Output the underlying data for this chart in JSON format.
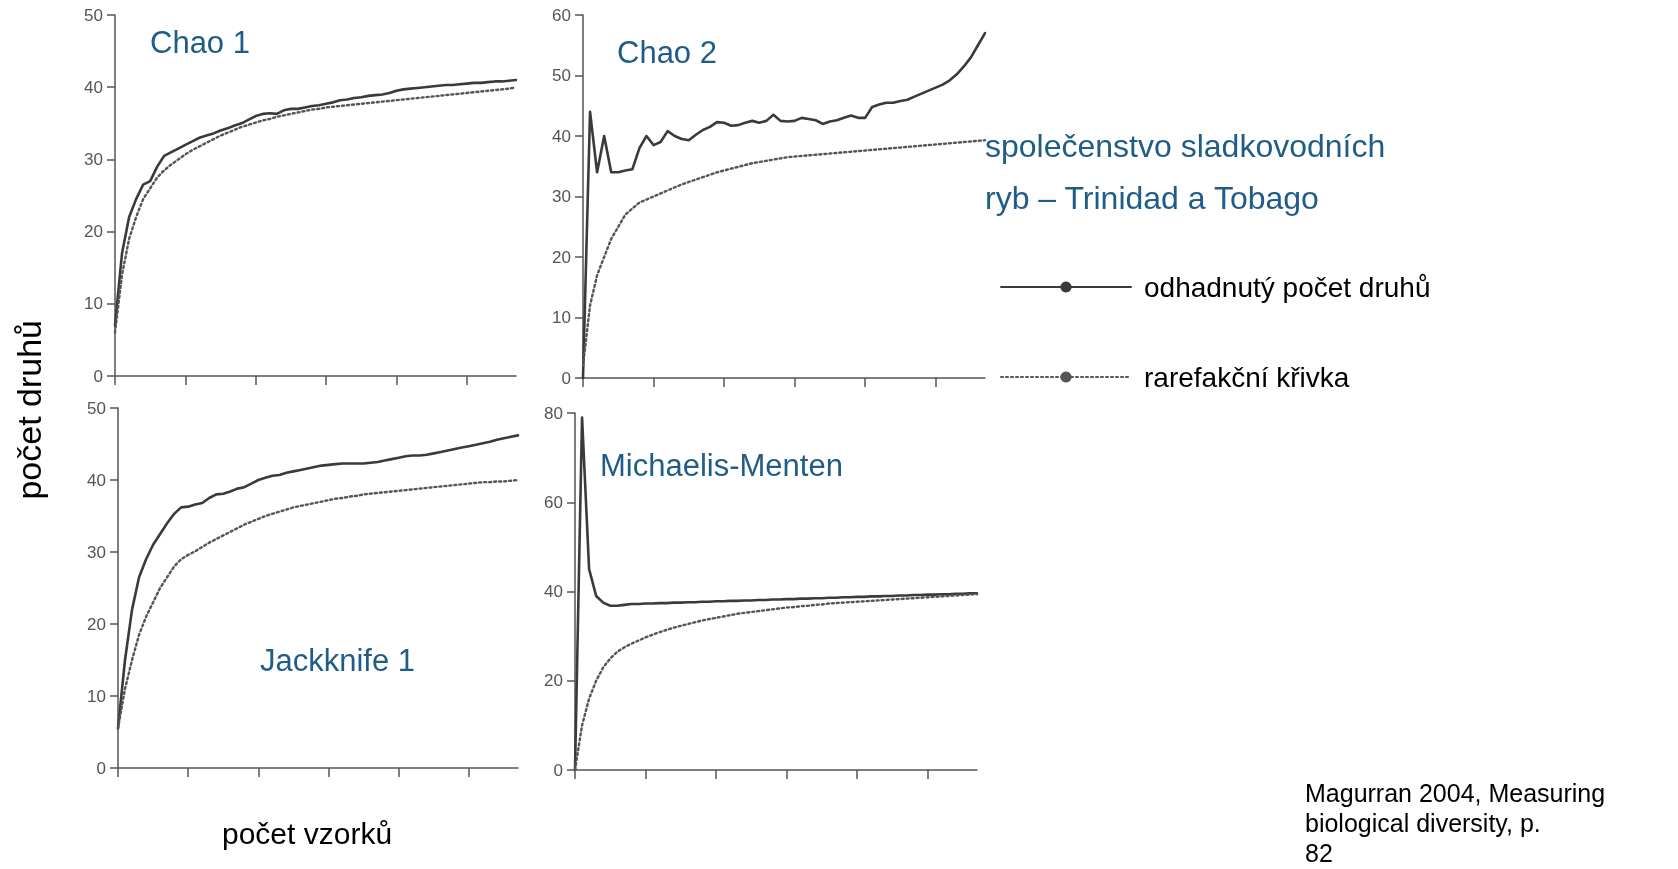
{
  "chart_data": [
    {
      "type": "line",
      "title": "Chao 1",
      "ylabel": "počet druhů",
      "categories": [
        null,
        null,
        null,
        null,
        null,
        null,
        null,
        null,
        null,
        null,
        null,
        null,
        null,
        null,
        null,
        null,
        null,
        null,
        null,
        null,
        null,
        null,
        null,
        null,
        null,
        null,
        null,
        null,
        null,
        null,
        null,
        null,
        null,
        null,
        null,
        null,
        null,
        null,
        null,
        null,
        null,
        null,
        null,
        null,
        null,
        null,
        null,
        null,
        null,
        null,
        null,
        null,
        null,
        null,
        null,
        null,
        null,
        null
      ],
      "ylim": [
        0,
        50
      ],
      "yticks": [
        0,
        10,
        20,
        30,
        40,
        50
      ],
      "tick_labels": "y",
      "marker": "none",
      "series": [
        {
          "color": "#3a3a3a",
          "line_style": "solid",
          "values": [
            7,
            17,
            22,
            24.5,
            26.5,
            27,
            29,
            30.5,
            31,
            31.5,
            32,
            32.5,
            33,
            33.3,
            33.6,
            34,
            34.3,
            34.7,
            35,
            35.5,
            36,
            36.3,
            36.4,
            36.3,
            36.8,
            37,
            37,
            37.2,
            37.4,
            37.5,
            37.7,
            37.9,
            38.2,
            38.3,
            38.5,
            38.6,
            38.8,
            38.9,
            39,
            39.2,
            39.5,
            39.7,
            39.8,
            39.9,
            40,
            40.1,
            40.2,
            40.3,
            40.3,
            40.4,
            40.5,
            40.6,
            40.6,
            40.7,
            40.8,
            40.8,
            40.9,
            41
          ]
        },
        {
          "color": "#555555",
          "line_style": "dotted",
          "values": [
            6,
            14,
            19,
            22,
            24.5,
            26,
            27.5,
            28.5,
            29.3,
            30,
            30.7,
            31.3,
            31.8,
            32.3,
            32.8,
            33.3,
            33.7,
            34.1,
            34.5,
            34.8,
            35.1,
            35.4,
            35.6,
            35.9,
            36.1,
            36.3,
            36.5,
            36.7,
            36.9,
            37,
            37.2,
            37.3,
            37.4,
            37.5,
            37.6,
            37.7,
            37.8,
            37.9,
            38,
            38.1,
            38.2,
            38.3,
            38.4,
            38.5,
            38.6,
            38.7,
            38.8,
            38.9,
            39,
            39.1,
            39.2,
            39.3,
            39.4,
            39.5,
            39.6,
            39.7,
            39.8,
            40
          ]
        }
      ]
    },
    {
      "type": "line",
      "title": "Chao 2",
      "legend_title": "společenstvo sladkovodních ryb – Trinidad a Tobago",
      "legend": "right",
      "categories": [
        null,
        null,
        null,
        null,
        null,
        null,
        null,
        null,
        null,
        null,
        null,
        null,
        null,
        null,
        null,
        null,
        null,
        null,
        null,
        null,
        null,
        null,
        null,
        null,
        null,
        null,
        null,
        null,
        null,
        null,
        null,
        null,
        null,
        null,
        null,
        null,
        null,
        null,
        null,
        null,
        null,
        null,
        null,
        null,
        null,
        null,
        null,
        null,
        null,
        null,
        null,
        null,
        null,
        null,
        null,
        null,
        null,
        null
      ],
      "ylim": [
        0,
        60
      ],
      "yticks": [
        0,
        10,
        20,
        30,
        40,
        50,
        60
      ],
      "tick_labels": "y",
      "marker": "none",
      "series": [
        {
          "name": "odhadnutý počet druhů",
          "color": "#3a3a3a",
          "line_style": "solid",
          "values": [
            0,
            44,
            34,
            40,
            34,
            34,
            34.3,
            34.5,
            38,
            40,
            38.5,
            39,
            40.8,
            40,
            39.5,
            39.3,
            40.2,
            41,
            41.5,
            42.3,
            42.2,
            41.7,
            41.8,
            42.2,
            42.5,
            42.2,
            42.5,
            43.5,
            42.5,
            42.4,
            42.5,
            43,
            42.8,
            42.6,
            42,
            42.4,
            42.6,
            43,
            43.4,
            43,
            43,
            44.8,
            45.2,
            45.5,
            45.5,
            45.8,
            46,
            46.5,
            47,
            47.5,
            48,
            48.5,
            49.2,
            50.2,
            51.5,
            53,
            55,
            57
          ]
        },
        {
          "name": "rarefakční křivka",
          "color": "#555555",
          "line_style": "dotted",
          "values": [
            2,
            12,
            17,
            20,
            23,
            25,
            27,
            28,
            29,
            29.5,
            30,
            30.5,
            31,
            31.5,
            32,
            32.4,
            32.8,
            33.2,
            33.6,
            34,
            34.3,
            34.6,
            34.9,
            35.2,
            35.5,
            35.7,
            35.9,
            36.1,
            36.3,
            36.5,
            36.6,
            36.7,
            36.8,
            36.9,
            37,
            37.1,
            37.2,
            37.3,
            37.4,
            37.5,
            37.6,
            37.7,
            37.8,
            37.9,
            38,
            38.1,
            38.2,
            38.3,
            38.4,
            38.5,
            38.6,
            38.7,
            38.8,
            38.9,
            39,
            39.1,
            39.2,
            39.3
          ]
        }
      ]
    },
    {
      "type": "line",
      "title": "Jackknife 1",
      "xlabel": "počet vzorků",
      "categories": [
        null,
        null,
        null,
        null,
        null,
        null,
        null,
        null,
        null,
        null,
        null,
        null,
        null,
        null,
        null,
        null,
        null,
        null,
        null,
        null,
        null,
        null,
        null,
        null,
        null,
        null,
        null,
        null,
        null,
        null,
        null,
        null,
        null,
        null,
        null,
        null,
        null,
        null,
        null,
        null,
        null,
        null,
        null,
        null,
        null,
        null,
        null,
        null,
        null,
        null,
        null,
        null,
        null,
        null,
        null,
        null,
        null,
        null
      ],
      "ylim": [
        0,
        50
      ],
      "yticks": [
        0,
        10,
        20,
        30,
        40,
        50
      ],
      "tick_labels": "y",
      "marker": "none",
      "series": [
        {
          "color": "#3a3a3a",
          "line_style": "solid",
          "values": [
            5.5,
            15,
            22,
            26.5,
            29,
            31,
            32.5,
            34,
            35.3,
            36.2,
            36.3,
            36.6,
            36.8,
            37.5,
            38,
            38.1,
            38.4,
            38.8,
            39,
            39.5,
            40,
            40.3,
            40.6,
            40.7,
            41,
            41.2,
            41.4,
            41.6,
            41.8,
            42,
            42.1,
            42.2,
            42.3,
            42.3,
            42.3,
            42.3,
            42.4,
            42.5,
            42.7,
            42.9,
            43.1,
            43.3,
            43.4,
            43.4,
            43.5,
            43.7,
            43.9,
            44.1,
            44.3,
            44.5,
            44.7,
            44.9,
            45.1,
            45.3,
            45.6,
            45.8,
            46,
            46.2
          ]
        },
        {
          "color": "#555555",
          "line_style": "dotted",
          "values": [
            5.5,
            11,
            15,
            18.5,
            21,
            23,
            25,
            26.5,
            28,
            29,
            29.6,
            30.1,
            30.7,
            31.3,
            31.8,
            32.3,
            32.8,
            33.3,
            33.8,
            34.2,
            34.6,
            35,
            35.3,
            35.6,
            35.9,
            36.2,
            36.4,
            36.6,
            36.8,
            37,
            37.2,
            37.4,
            37.5,
            37.7,
            37.8,
            38,
            38.1,
            38.2,
            38.3,
            38.4,
            38.5,
            38.6,
            38.7,
            38.8,
            38.9,
            39,
            39.1,
            39.2,
            39.3,
            39.4,
            39.5,
            39.6,
            39.7,
            39.7,
            39.8,
            39.8,
            39.9,
            40
          ]
        }
      ]
    },
    {
      "type": "line",
      "title": "Michaelis-Menten",
      "annotations": [
        "Magurran 2004, Measuring biological diversity, p. 82"
      ],
      "categories": [
        null,
        null,
        null,
        null,
        null,
        null,
        null,
        null,
        null,
        null,
        null,
        null,
        null,
        null,
        null,
        null,
        null,
        null,
        null,
        null,
        null,
        null,
        null,
        null,
        null,
        null,
        null,
        null,
        null,
        null,
        null,
        null,
        null,
        null,
        null,
        null,
        null,
        null,
        null,
        null,
        null,
        null,
        null,
        null,
        null,
        null,
        null,
        null,
        null,
        null,
        null,
        null,
        null,
        null,
        null,
        null,
        null,
        null
      ],
      "ylim": [
        0,
        80
      ],
      "yticks": [
        0,
        20,
        40,
        60,
        80
      ],
      "tick_labels": "y",
      "marker": "none",
      "series": [
        {
          "color": "#3a3a3a",
          "line_style": "solid",
          "values": [
            0,
            79,
            45,
            39,
            37.5,
            36.8,
            36.8,
            37,
            37.2,
            37.2,
            37.3,
            37.3,
            37.4,
            37.4,
            37.5,
            37.5,
            37.6,
            37.6,
            37.7,
            37.7,
            37.8,
            37.8,
            37.9,
            37.9,
            38,
            38,
            38.1,
            38.1,
            38.2,
            38.2,
            38.3,
            38.3,
            38.4,
            38.4,
            38.5,
            38.5,
            38.6,
            38.6,
            38.7,
            38.7,
            38.8,
            38.8,
            38.9,
            38.9,
            39,
            39,
            39.1,
            39.1,
            39.2,
            39.2,
            39.3,
            39.3,
            39.4,
            39.4,
            39.5,
            39.5,
            39.6,
            39.6
          ]
        },
        {
          "color": "#555555",
          "line_style": "dotted",
          "values": [
            0,
            10,
            16,
            20,
            23,
            25,
            26.5,
            27.5,
            28.3,
            29,
            29.7,
            30.3,
            30.9,
            31.4,
            31.9,
            32.3,
            32.7,
            33.1,
            33.5,
            33.8,
            34.1,
            34.4,
            34.7,
            35,
            35.2,
            35.4,
            35.6,
            35.8,
            36,
            36.2,
            36.4,
            36.5,
            36.7,
            36.8,
            37,
            37.1,
            37.3,
            37.4,
            37.5,
            37.6,
            37.7,
            37.8,
            37.9,
            38,
            38.1,
            38.2,
            38.3,
            38.4,
            38.5,
            38.6,
            38.7,
            38.8,
            38.9,
            39,
            39.1,
            39.2,
            39.3,
            39.4
          ]
        }
      ]
    }
  ]
}
